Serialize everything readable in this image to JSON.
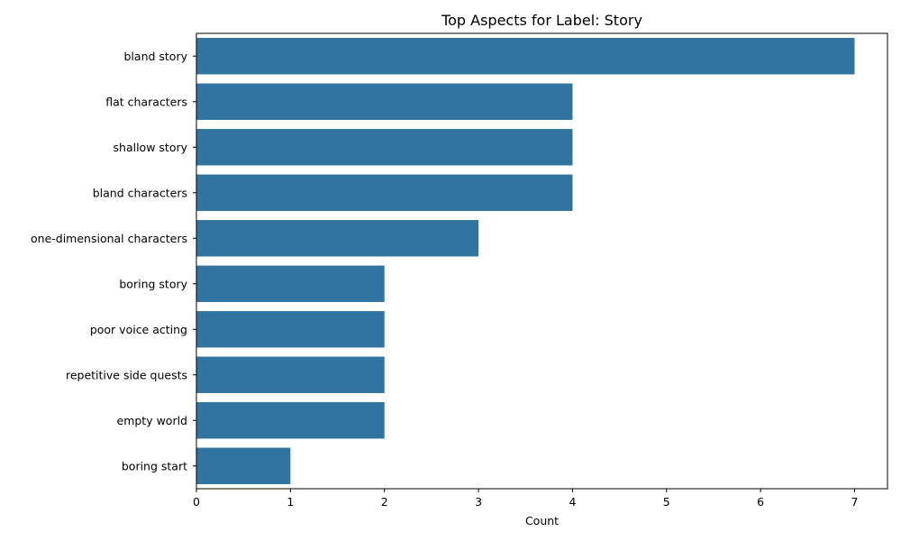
{
  "chart_data": {
    "type": "bar",
    "orientation": "horizontal",
    "title": "Top Aspects for Label: Story",
    "xlabel": "Count",
    "ylabel": "",
    "categories": [
      "bland story",
      "flat characters",
      "shallow story",
      "bland characters",
      "one-dimensional characters",
      "boring story",
      "poor voice acting",
      "repetitive side quests",
      "empty world",
      "boring start"
    ],
    "values": [
      7,
      4,
      4,
      4,
      3,
      2,
      2,
      2,
      2,
      1
    ],
    "xlim": [
      0,
      7.35
    ],
    "xticks": [
      "0",
      "1",
      "2",
      "3",
      "4",
      "5",
      "6",
      "7"
    ],
    "grid": false,
    "legend": "none",
    "colors": {
      "bar": "#3274a1",
      "axis": "#000000",
      "background": "#ffffff"
    }
  }
}
